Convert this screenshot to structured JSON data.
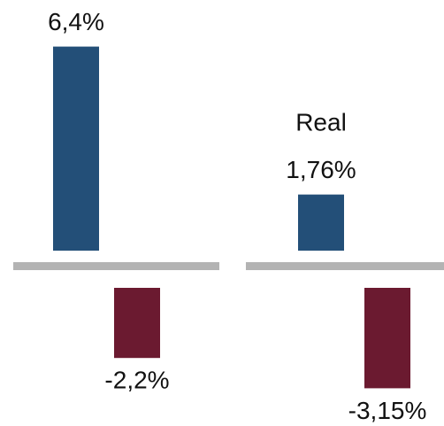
{
  "chart_data": [
    {
      "type": "bar",
      "values": [
        6.4,
        -2.2
      ],
      "value_labels": [
        "6,4%",
        "-2,2%"
      ],
      "colors": [
        "#234f78",
        "#6b1a30"
      ]
    },
    {
      "type": "bar",
      "title": "Real",
      "values": [
        1.76,
        -3.15
      ],
      "value_labels": [
        "1,76%",
        "-3,15%"
      ],
      "colors": [
        "#234f78",
        "#6b1a30"
      ]
    }
  ]
}
